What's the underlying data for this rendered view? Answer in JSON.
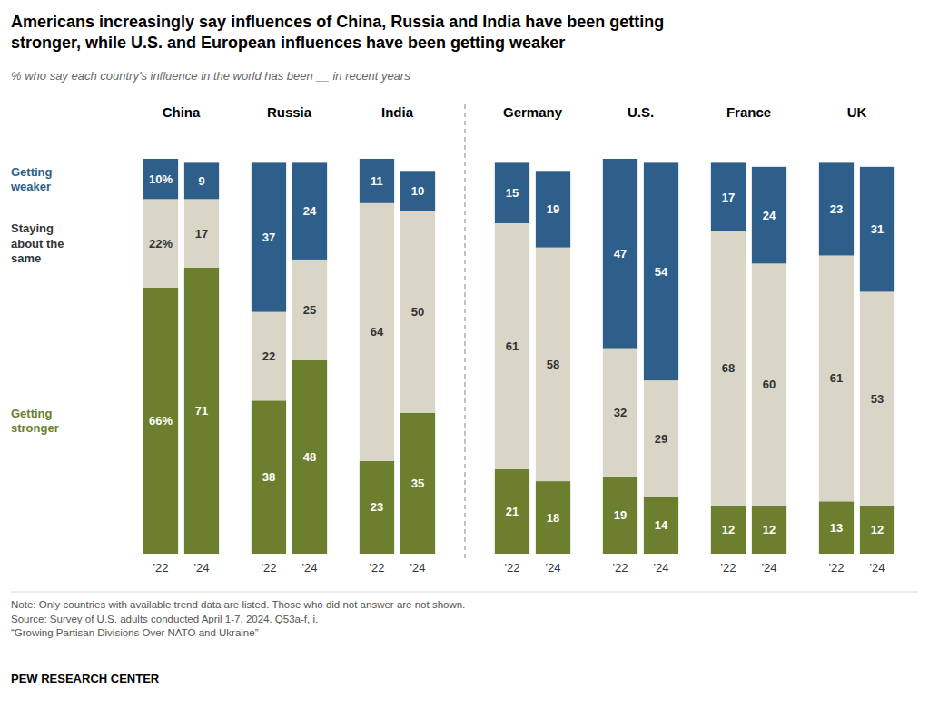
{
  "chart_data": {
    "type": "bar",
    "stacked": true,
    "data_labels": true,
    "tick_labels": "x",
    "grid": false,
    "legend": "left",
    "title": "Americans increasingly say influences of China, Russia and India have been getting\nstronger, while U.S. and European influences have been getting weaker",
    "subtitle": "% who say each country's influence in the world has been __ in recent years",
    "groups": [
      "China",
      "Russia",
      "India",
      "Germany",
      "U.S.",
      "France",
      "UK"
    ],
    "categories": [
      "'22",
      "'24",
      "'22",
      "'24",
      "'22",
      "'24",
      "'22",
      "'24",
      "'22",
      "'24",
      "'22",
      "'24",
      "'22",
      "'24"
    ],
    "ylim": [
      0,
      107
    ],
    "series": [
      {
        "name": "Getting\nstronger",
        "color": "#6b7f2e",
        "values": [
          66,
          71,
          38,
          48,
          23,
          35,
          21,
          18,
          19,
          14,
          12,
          12,
          13,
          12
        ],
        "value_labels": [
          "66%",
          "71",
          "38",
          "48",
          "23",
          "35",
          "21",
          "18",
          "19",
          "14",
          "12",
          "12",
          "13",
          "12"
        ]
      },
      {
        "name": "Staying\nabout the\nsame",
        "color": "#d9d6c8",
        "values": [
          22,
          17,
          22,
          25,
          64,
          50,
          61,
          58,
          32,
          29,
          68,
          60,
          61,
          53
        ],
        "value_labels": [
          "22%",
          "17",
          "22",
          "25",
          "64",
          "50",
          "61",
          "58",
          "32",
          "29",
          "68",
          "60",
          "61",
          "53"
        ]
      },
      {
        "name": "Getting\nweaker",
        "color": "#2e5f8a",
        "values": [
          10,
          9,
          37,
          24,
          11,
          10,
          15,
          19,
          47,
          54,
          17,
          24,
          23,
          31
        ],
        "value_labels": [
          "10%",
          "9",
          "37",
          "24",
          "11",
          "10",
          "15",
          "19",
          "47",
          "54",
          "17",
          "24",
          "23",
          "31"
        ]
      }
    ],
    "note": "Note: Only countries with available trend data are listed. Those who did not answer are not shown.\nSource: Survey of U.S. adults conducted April 1-7, 2024. Q53a-f, i.\n“Growing Partisan Divisions Over NATO and Ukraine”",
    "credit": "PEW RESEARCH CENTER"
  }
}
